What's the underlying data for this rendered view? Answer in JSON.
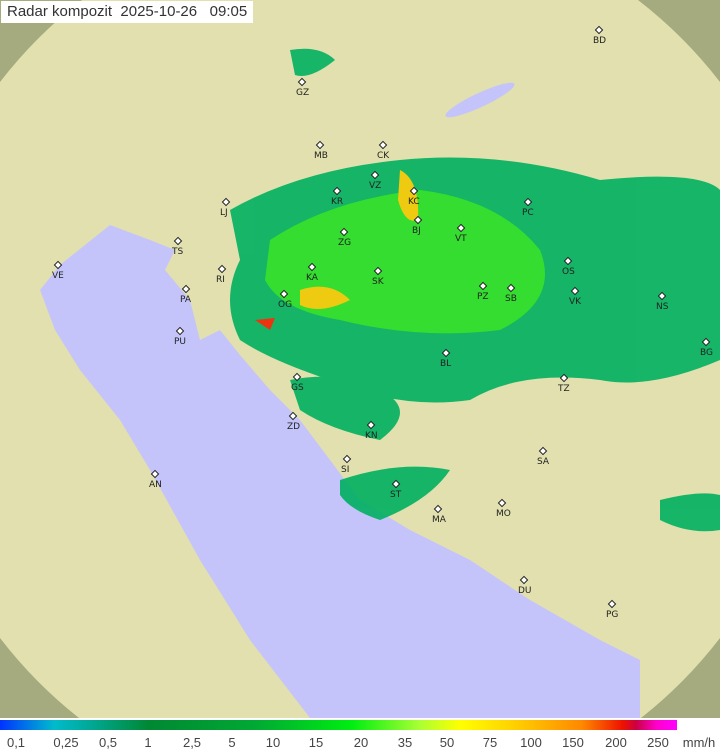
{
  "title": {
    "label": "Radar kompozit",
    "date": "2025-10-26",
    "time": "09:05"
  },
  "legend": {
    "unit": "mm/h",
    "ticks": [
      "0,1",
      "0,25",
      "0,5",
      "1",
      "2,5",
      "5",
      "10",
      "15",
      "20",
      "35",
      "50",
      "75",
      "100",
      "150",
      "200",
      "250"
    ]
  },
  "cities": [
    "GZ",
    "MB",
    "CK",
    "BD",
    "VZ",
    "KR",
    "KC",
    "PC",
    "LJ",
    "BJ",
    "ZG",
    "VT",
    "TS",
    "VE",
    "RI",
    "KA",
    "SK",
    "OS",
    "PA",
    "PZ",
    "SB",
    "VK",
    "NS",
    "OG",
    "PU",
    "BG",
    "BL",
    "GS",
    "TZ",
    "ZD",
    "KN",
    "SA",
    "SI",
    "AN",
    "ST",
    "MA",
    "MO",
    "DU",
    "PG"
  ],
  "colors": {
    "land": "#e6dcaa",
    "sea": "#c4c4fb",
    "outside_range": "#8c8a62",
    "rain_light": "#00b060",
    "rain_medium": "#22dd22",
    "rain_heavy": "#f0c800"
  }
}
